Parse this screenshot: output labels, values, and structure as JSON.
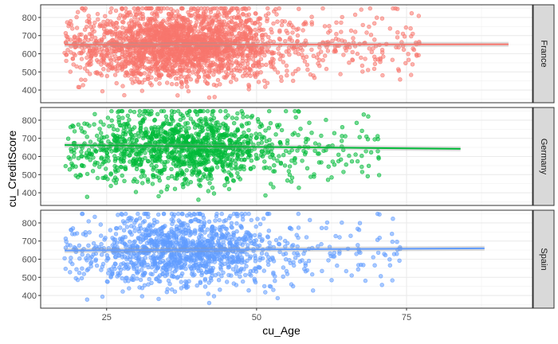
{
  "chart_data": {
    "type": "scatter",
    "xlabel": "cu_Age",
    "ylabel": "cu_CreditScore",
    "xlim": [
      14,
      96
    ],
    "ylim": [
      330,
      870
    ],
    "x_ticks": [
      25,
      50,
      75
    ],
    "y_ticks": [
      400,
      500,
      600,
      700,
      800
    ],
    "grid": true,
    "facets": [
      {
        "label": "France",
        "color": "#F8766D",
        "point_count": 2400,
        "age_range": [
          18,
          92
        ],
        "trend": {
          "x": [
            18,
            92
          ],
          "y": [
            650,
            652
          ]
        }
      },
      {
        "label": "Germany",
        "color": "#00BA38",
        "point_count": 1300,
        "age_range": [
          18,
          84
        ],
        "trend": {
          "x": [
            18,
            84
          ],
          "y": [
            663,
            642
          ]
        }
      },
      {
        "label": "Spain",
        "color": "#619CFF",
        "point_count": 1300,
        "age_range": [
          18,
          88
        ],
        "trend": {
          "x": [
            18,
            88
          ],
          "y": [
            648,
            660
          ]
        }
      }
    ]
  }
}
